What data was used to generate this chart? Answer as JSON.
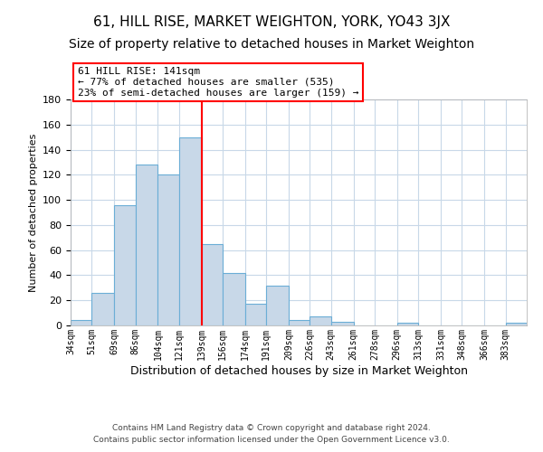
{
  "title": "61, HILL RISE, MARKET WEIGHTON, YORK, YO43 3JX",
  "subtitle": "Size of property relative to detached houses in Market Weighton",
  "xlabel": "Distribution of detached houses by size in Market Weighton",
  "ylabel": "Number of detached properties",
  "bar_color": "#c8d8e8",
  "bar_edge_color": "#6baed6",
  "bin_labels": [
    "34sqm",
    "51sqm",
    "69sqm",
    "86sqm",
    "104sqm",
    "121sqm",
    "139sqm",
    "156sqm",
    "174sqm",
    "191sqm",
    "209sqm",
    "226sqm",
    "243sqm",
    "261sqm",
    "278sqm",
    "296sqm",
    "313sqm",
    "331sqm",
    "348sqm",
    "366sqm",
    "383sqm"
  ],
  "bar_heights": [
    4,
    26,
    96,
    128,
    120,
    150,
    65,
    42,
    17,
    32,
    4,
    7,
    3,
    0,
    0,
    2,
    0,
    0,
    0,
    0,
    2
  ],
  "bin_edges": [
    34,
    51,
    69,
    86,
    104,
    121,
    139,
    156,
    174,
    191,
    209,
    226,
    243,
    261,
    278,
    296,
    313,
    331,
    348,
    366,
    383,
    400
  ],
  "vline_x": 139,
  "vline_color": "red",
  "ylim": [
    0,
    180
  ],
  "yticks": [
    0,
    20,
    40,
    60,
    80,
    100,
    120,
    140,
    160,
    180
  ],
  "annotation_title": "61 HILL RISE: 141sqm",
  "annotation_line1": "← 77% of detached houses are smaller (535)",
  "annotation_line2": "23% of semi-detached houses are larger (159) →",
  "annotation_box_color": "white",
  "annotation_box_edge_color": "red",
  "footer_line1": "Contains HM Land Registry data © Crown copyright and database right 2024.",
  "footer_line2": "Contains public sector information licensed under the Open Government Licence v3.0.",
  "background_color": "white",
  "grid_color": "#c8d8e8",
  "title_fontsize": 11,
  "subtitle_fontsize": 10,
  "annotation_fontsize": 8,
  "footer_fontsize": 6.5,
  "ylabel_fontsize": 8,
  "xlabel_fontsize": 9,
  "ytick_fontsize": 8,
  "xtick_fontsize": 7
}
